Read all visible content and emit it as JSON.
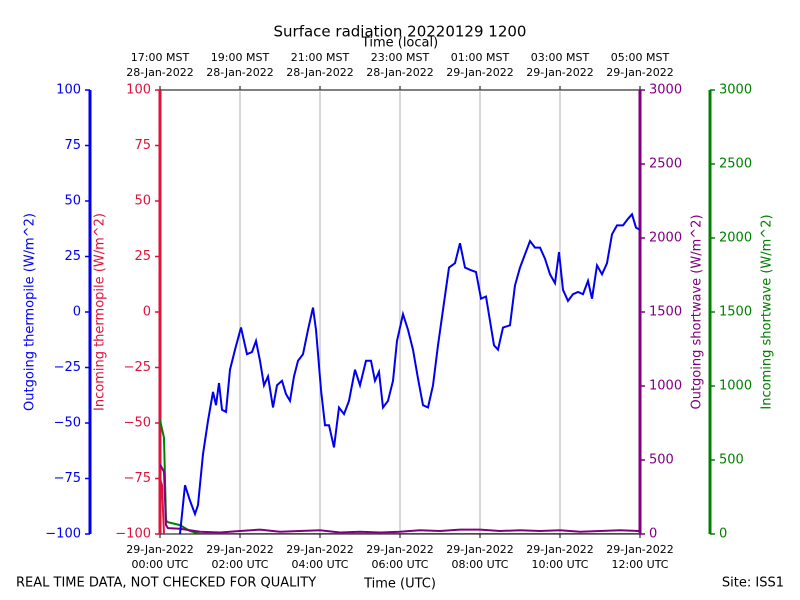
{
  "chart_data": {
    "type": "line",
    "title": "Surface radiation 20220129 1200",
    "top_axis_label": "Time (local)",
    "xlabel": "Time (UTC)",
    "footer_left": "REAL TIME DATA, NOT CHECKED FOR QUALITY",
    "footer_right": "Site: ISS1",
    "grid": true,
    "xlim": [
      0,
      12
    ],
    "xticks": [
      {
        "value": 0,
        "label": [
          "29-Jan-2022",
          "00:00 UTC"
        ]
      },
      {
        "value": 2,
        "label": [
          "29-Jan-2022",
          "02:00 UTC"
        ]
      },
      {
        "value": 4,
        "label": [
          "29-Jan-2022",
          "04:00 UTC"
        ]
      },
      {
        "value": 6,
        "label": [
          "29-Jan-2022",
          "06:00 UTC"
        ]
      },
      {
        "value": 8,
        "label": [
          "29-Jan-2022",
          "08:00 UTC"
        ]
      },
      {
        "value": 10,
        "label": [
          "29-Jan-2022",
          "10:00 UTC"
        ]
      },
      {
        "value": 12,
        "label": [
          "29-Jan-2022",
          "12:00 UTC"
        ]
      }
    ],
    "top_xticks": [
      {
        "value": 0,
        "label": [
          "17:00 MST",
          "28-Jan-2022"
        ]
      },
      {
        "value": 2,
        "label": [
          "19:00 MST",
          "28-Jan-2022"
        ]
      },
      {
        "value": 4,
        "label": [
          "21:00 MST",
          "28-Jan-2022"
        ]
      },
      {
        "value": 6,
        "label": [
          "23:00 MST",
          "28-Jan-2022"
        ]
      },
      {
        "value": 8,
        "label": [
          "01:00 MST",
          "29-Jan-2022"
        ]
      },
      {
        "value": 10,
        "label": [
          "03:00 MST",
          "29-Jan-2022"
        ]
      },
      {
        "value": 12,
        "label": [
          "05:00 MST",
          "29-Jan-2022"
        ]
      }
    ],
    "y_axes": [
      {
        "label": "Outgoing thermopile (W/m^2)",
        "color": "#0000ee",
        "side": "left",
        "ylim": [
          -100,
          100
        ],
        "yticks": [
          {
            "value": -100,
            "label": "−100"
          },
          {
            "value": -75,
            "label": "−75"
          },
          {
            "value": -50,
            "label": "−50"
          },
          {
            "value": -25,
            "label": "−25"
          },
          0,
          25,
          50,
          75,
          100
        ]
      },
      {
        "label": "Incoming thermopile (W/m^2)",
        "color": "#dc143c",
        "side": "left",
        "ylim": [
          -100,
          100
        ],
        "yticks": [
          {
            "value": -100,
            "label": "−100"
          },
          {
            "value": -75,
            "label": "−75"
          },
          {
            "value": -50,
            "label": "−50"
          },
          {
            "value": -25,
            "label": "−25"
          },
          0,
          25,
          50,
          75,
          100
        ]
      },
      {
        "label": "Outgoing shortwave (W/m^2)",
        "color": "#800080",
        "side": "right",
        "ylim": [
          0,
          3000
        ],
        "yticks": [
          0,
          500,
          1000,
          1500,
          2000,
          2500,
          3000
        ]
      },
      {
        "label": "Incoming shortwave (W/m^2)",
        "color": "#008000",
        "side": "right",
        "ylim": [
          0,
          3000
        ],
        "yticks": [
          0,
          500,
          1000,
          1500,
          2000,
          2500,
          3000
        ]
      }
    ],
    "series": [
      {
        "axis": 3,
        "color": "#008000",
        "x": [
          0,
          0.1,
          0.15,
          0.2,
          0.5,
          0.75,
          1,
          12
        ],
        "values": [
          770,
          650,
          90,
          80,
          60,
          20,
          0,
          0
        ]
      },
      {
        "axis": 1,
        "color": "#dc143c",
        "x": [
          0,
          0.05,
          0.1
        ],
        "values": [
          -75,
          -78,
          -100
        ]
      },
      {
        "axis": 2,
        "color": "#800080",
        "x": [
          0,
          0.1,
          0.15,
          0.2,
          0.5,
          1,
          1.5,
          2,
          2.5,
          3,
          3.5,
          4,
          4.5,
          5,
          5.5,
          6,
          6.5,
          7,
          7.5,
          8,
          8.5,
          9,
          9.5,
          10,
          10.5,
          11,
          11.5,
          12
        ],
        "values": [
          470,
          420,
          60,
          40,
          35,
          15,
          10,
          20,
          30,
          15,
          20,
          25,
          10,
          15,
          10,
          15,
          25,
          20,
          30,
          30,
          20,
          25,
          20,
          25,
          15,
          20,
          25,
          20
        ]
      },
      {
        "axis": 0,
        "color": "#0000ee",
        "x": [
          0.5,
          0.625,
          0.75,
          0.875,
          0.95,
          1.075,
          1.2,
          1.325,
          1.4,
          1.475,
          1.55,
          1.65,
          1.75,
          1.875,
          2.025,
          2.175,
          2.3,
          2.4,
          2.5,
          2.6,
          2.7,
          2.825,
          2.925,
          3.05,
          3.15,
          3.25,
          3.35,
          3.45,
          3.575,
          3.7,
          3.825,
          3.9,
          4.025,
          4.125,
          4.225,
          4.35,
          4.475,
          4.6,
          4.725,
          4.875,
          5,
          5.15,
          5.275,
          5.375,
          5.475,
          5.575,
          5.7,
          5.825,
          5.925,
          6.075,
          6.2,
          6.325,
          6.45,
          6.575,
          6.7,
          6.825,
          6.95,
          7.075,
          7.225,
          7.375,
          7.5,
          7.625,
          7.75,
          7.9,
          8.025,
          8.15,
          8.25,
          8.35,
          8.45,
          8.575,
          8.75,
          8.875,
          9,
          9.125,
          9.25,
          9.375,
          9.5,
          9.625,
          9.75,
          9.875,
          9.975,
          10.075,
          10.2,
          10.325,
          10.45,
          10.575,
          10.7,
          10.8,
          10.925,
          11.05,
          11.175,
          11.3,
          11.425,
          11.575,
          11.7,
          11.8,
          11.9,
          12
        ],
        "values": [
          -100,
          -78,
          -85,
          -91,
          -87,
          -64,
          -49,
          -36,
          -42,
          -32,
          -44,
          -45,
          -26,
          -17,
          -7,
          -19,
          -18,
          -13,
          -22,
          -33,
          -29,
          -43,
          -33,
          -31,
          -37,
          -40,
          -29,
          -22,
          -19,
          -8,
          2,
          -8,
          -35,
          -51,
          -51,
          -61,
          -43,
          -46,
          -40,
          -26,
          -33,
          -22,
          -22,
          -31,
          -27,
          -43,
          -40,
          -31,
          -13,
          -1,
          -8,
          -17,
          -30,
          -42,
          -43,
          -33,
          -15,
          1,
          20,
          22,
          31,
          20,
          19,
          18,
          6,
          7,
          -4,
          -15,
          -17,
          -7,
          -6,
          12,
          20,
          26,
          32,
          29,
          29,
          24,
          17,
          13,
          27,
          10,
          5,
          8,
          9,
          8,
          14,
          6,
          21,
          17,
          22,
          35,
          39,
          39,
          42,
          44,
          38,
          37
        ]
      }
    ]
  }
}
